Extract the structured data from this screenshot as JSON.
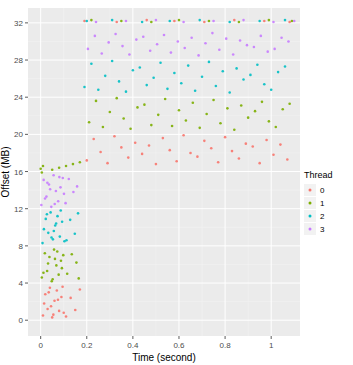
{
  "chart_data": {
    "type": "scatter",
    "x_label": "Time (second)",
    "y_label": "Offset (MB)",
    "legend_title": "Thread",
    "legend": "right",
    "grid": true,
    "marker": "circle",
    "xlim": [
      -0.055,
      1.125
    ],
    "ylim": [
      -1.7,
      33.6
    ],
    "xticks": [
      0,
      0.2,
      0.4,
      0.6,
      0.8,
      1
    ],
    "yticks": [
      0,
      4,
      8,
      12,
      16,
      20,
      24,
      28,
      32
    ],
    "series": [
      {
        "name": "0",
        "color": "#F8766D",
        "x": [
          0.01,
          0.02,
          0.03,
          0.04,
          0.05,
          0.06,
          0.07,
          0.08,
          0.09,
          0.1,
          0.015,
          0.035,
          0.055,
          0.075,
          0.095,
          0.045,
          0.11,
          0.13,
          0.15,
          0.17,
          0.2,
          0.23,
          0.26,
          0.29,
          0.32,
          0.35,
          0.38,
          0.41,
          0.44,
          0.47,
          0.5,
          0.53,
          0.56,
          0.59,
          0.62,
          0.65,
          0.68,
          0.71,
          0.74,
          0.77,
          0.8,
          0.83,
          0.86,
          0.89,
          0.92,
          0.95,
          0.98,
          1.01,
          1.04,
          1.07,
          0.19,
          0.33,
          0.46,
          0.58,
          0.71,
          0.84,
          0.97,
          1.08
        ],
        "values": [
          0.5,
          2.8,
          1.2,
          3.5,
          0.3,
          2.1,
          3.2,
          1.0,
          2.5,
          0.8,
          1.8,
          3.0,
          0.6,
          2.2,
          3.6,
          1.5,
          0.4,
          2.4,
          1.1,
          3.3,
          17.2,
          19.5,
          18.1,
          16.9,
          19.8,
          18.6,
          17.5,
          19.1,
          17.9,
          18.8,
          16.8,
          19.6,
          18.3,
          17.1,
          19.9,
          18.0,
          17.6,
          19.3,
          18.5,
          17.0,
          19.7,
          18.2,
          17.4,
          19.0,
          18.7,
          16.9,
          19.4,
          17.8,
          18.9,
          17.3,
          32.2,
          32.1,
          32.3,
          32.2,
          32.1,
          32.3,
          32.2,
          32.1
        ]
      },
      {
        "name": "1",
        "color": "#7CAE00",
        "x": [
          0.005,
          0.018,
          0.028,
          0.038,
          0.048,
          0.058,
          0.068,
          0.078,
          0.088,
          0.098,
          0.012,
          0.032,
          0.052,
          0.072,
          0.092,
          0.062,
          0.115,
          0.135,
          0.155,
          0.165,
          0.21,
          0.24,
          0.27,
          0.3,
          0.33,
          0.36,
          0.39,
          0.42,
          0.45,
          0.48,
          0.51,
          0.54,
          0.57,
          0.6,
          0.63,
          0.66,
          0.69,
          0.72,
          0.75,
          0.78,
          0.81,
          0.84,
          0.87,
          0.9,
          0.93,
          0.96,
          0.99,
          1.02,
          1.05,
          1.08,
          0.22,
          0.35,
          0.48,
          0.6,
          0.73,
          0.86,
          0.99,
          1.09,
          0.0,
          0.005,
          0.01,
          0.05,
          0.08,
          0.11,
          0.14,
          0.17
        ],
        "values": [
          4.6,
          7.2,
          5.3,
          6.8,
          4.2,
          7.6,
          5.9,
          4.9,
          6.4,
          7.0,
          5.1,
          6.1,
          4.4,
          7.4,
          5.6,
          6.6,
          5.0,
          7.1,
          6.2,
          4.5,
          21.3,
          23.6,
          20.8,
          22.4,
          23.9,
          21.7,
          20.6,
          22.9,
          23.2,
          21.0,
          22.1,
          23.8,
          20.9,
          22.6,
          21.5,
          23.4,
          20.7,
          22.2,
          23.7,
          21.2,
          22.8,
          20.5,
          23.1,
          21.8,
          22.5,
          23.5,
          21.4,
          20.8,
          22.7,
          23.3,
          32.3,
          32.2,
          32.1,
          32.3,
          32.2,
          32.1,
          32.3,
          32.2,
          16.3,
          15.9,
          16.6,
          16.2,
          16.4,
          16.6,
          16.8,
          17.0
        ]
      },
      {
        "name": "2",
        "color": "#00BFC4",
        "x": [
          0.008,
          0.022,
          0.033,
          0.043,
          0.053,
          0.063,
          0.073,
          0.083,
          0.093,
          0.103,
          0.014,
          0.027,
          0.047,
          0.067,
          0.087,
          0.057,
          0.112,
          0.128,
          0.148,
          0.162,
          0.19,
          0.22,
          0.25,
          0.28,
          0.31,
          0.34,
          0.37,
          0.4,
          0.43,
          0.46,
          0.49,
          0.52,
          0.55,
          0.58,
          0.61,
          0.64,
          0.67,
          0.7,
          0.73,
          0.76,
          0.79,
          0.82,
          0.85,
          0.88,
          0.91,
          0.94,
          0.97,
          1.0,
          1.03,
          1.06,
          0.2,
          0.31,
          0.44,
          0.56,
          0.69,
          0.82,
          0.95,
          1.06
        ],
        "values": [
          8.3,
          10.9,
          9.4,
          11.6,
          8.7,
          10.2,
          11.2,
          9.0,
          10.6,
          8.5,
          9.8,
          11.4,
          8.9,
          10.4,
          11.8,
          9.6,
          8.6,
          10.8,
          9.3,
          11.5,
          25.1,
          27.6,
          24.8,
          26.3,
          27.9,
          25.7,
          24.6,
          26.9,
          27.2,
          25.3,
          26.1,
          27.7,
          24.9,
          26.6,
          25.5,
          27.4,
          24.7,
          26.2,
          27.8,
          25.2,
          26.8,
          24.5,
          27.1,
          25.9,
          26.4,
          27.5,
          25.4,
          24.8,
          26.7,
          27.3,
          32.2,
          32.3,
          32.1,
          32.2,
          32.3,
          32.1,
          32.2,
          32.3
        ]
      },
      {
        "name": "3",
        "color": "#C77CFF",
        "x": [
          0.003,
          0.013,
          0.025,
          0.036,
          0.046,
          0.056,
          0.066,
          0.076,
          0.086,
          0.096,
          0.019,
          0.041,
          0.061,
          0.081,
          0.101,
          0.029,
          0.108,
          0.122,
          0.142,
          0.158,
          0.205,
          0.235,
          0.265,
          0.295,
          0.325,
          0.355,
          0.385,
          0.415,
          0.445,
          0.475,
          0.505,
          0.535,
          0.565,
          0.595,
          0.625,
          0.655,
          0.685,
          0.715,
          0.745,
          0.775,
          0.805,
          0.835,
          0.865,
          0.895,
          0.925,
          0.955,
          0.985,
          1.015,
          1.045,
          1.075,
          0.24,
          0.37,
          0.5,
          0.62,
          0.75,
          0.88,
          1.01,
          1.1
        ],
        "values": [
          12.4,
          15.1,
          13.3,
          14.6,
          12.2,
          15.6,
          13.9,
          12.8,
          14.3,
          15.3,
          13.1,
          14.1,
          12.5,
          15.4,
          13.6,
          14.8,
          12.6,
          15.2,
          13.8,
          14.4,
          29.2,
          30.6,
          28.7,
          29.9,
          30.8,
          29.5,
          28.6,
          30.2,
          30.5,
          29.0,
          29.7,
          30.7,
          28.8,
          30.0,
          29.3,
          30.4,
          28.5,
          29.8,
          30.9,
          29.1,
          30.3,
          28.6,
          30.1,
          29.6,
          29.4,
          30.6,
          28.9,
          29.2,
          30.4,
          30.0,
          32.1,
          32.2,
          32.3,
          32.1,
          32.2,
          32.3,
          32.1,
          32.2
        ]
      }
    ]
  }
}
